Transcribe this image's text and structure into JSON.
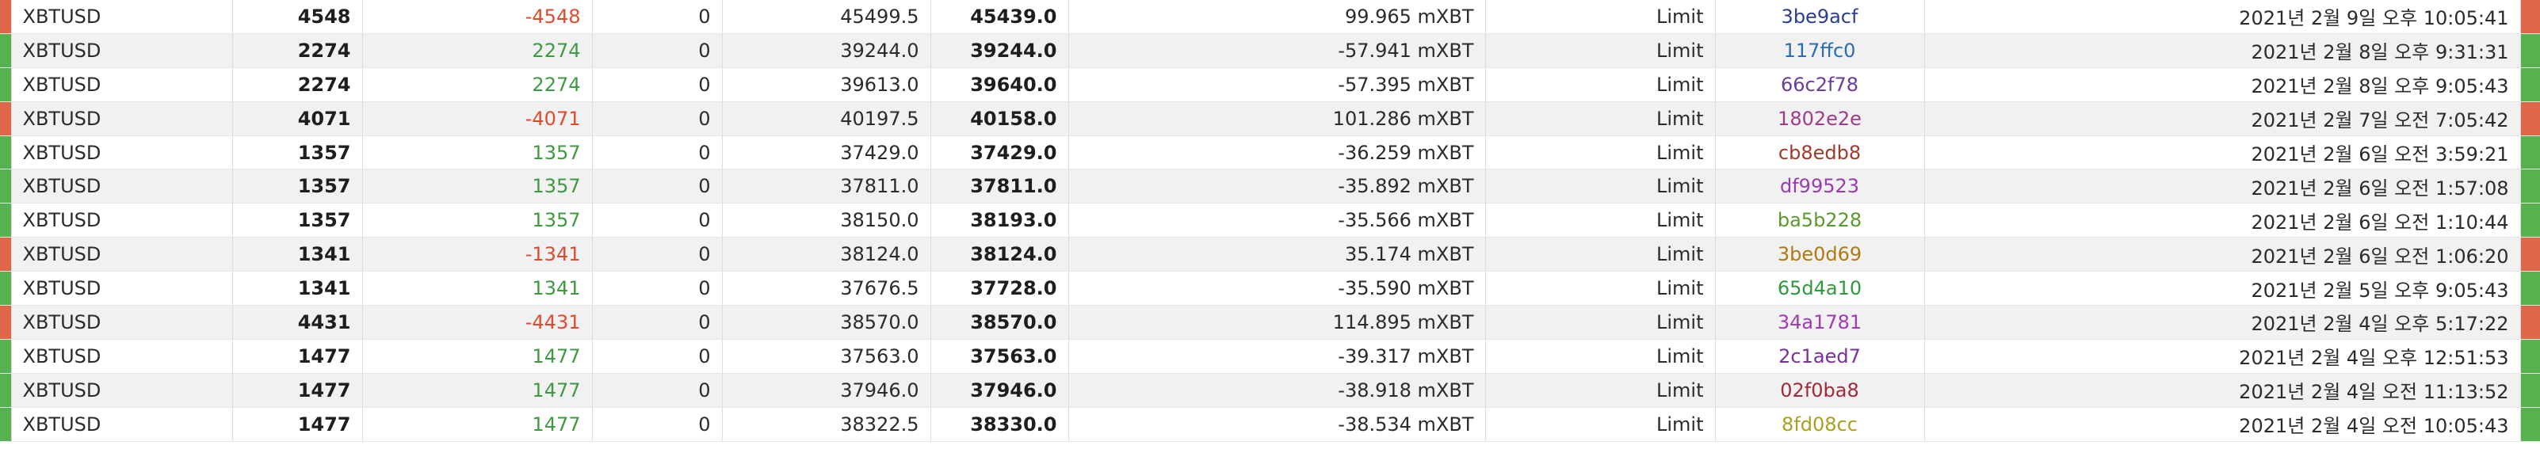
{
  "rows": [
    {
      "side": "sell",
      "symbol": "XBTUSD",
      "size": "4548",
      "filled": "-4548",
      "remaining": "0",
      "price": "45499.5",
      "avg_price": "45439.0",
      "fee": "99.965 mXBT",
      "type": "Limit",
      "order_id": "3be9acf",
      "id_color": "#2c3c98",
      "time": "2021년 2월 9일 오후 10:05:41"
    },
    {
      "side": "buy",
      "symbol": "XBTUSD",
      "size": "2274",
      "filled": "2274",
      "remaining": "0",
      "price": "39244.0",
      "avg_price": "39244.0",
      "fee": "-57.941 mXBT",
      "type": "Limit",
      "order_id": "117ffc0",
      "id_color": "#2b6cb0",
      "time": "2021년 2월 8일 오후 9:31:31"
    },
    {
      "side": "buy",
      "symbol": "XBTUSD",
      "size": "2274",
      "filled": "2274",
      "remaining": "0",
      "price": "39613.0",
      "avg_price": "39640.0",
      "fee": "-57.395 mXBT",
      "type": "Limit",
      "order_id": "66c2f78",
      "id_color": "#6a3d9a",
      "time": "2021년 2월 8일 오후 9:05:43"
    },
    {
      "side": "sell",
      "symbol": "XBTUSD",
      "size": "4071",
      "filled": "-4071",
      "remaining": "0",
      "price": "40197.5",
      "avg_price": "40158.0",
      "fee": "101.286 mXBT",
      "type": "Limit",
      "order_id": "1802e2e",
      "id_color": "#a23a8a",
      "time": "2021년 2월 7일 오전 7:05:42"
    },
    {
      "side": "buy",
      "symbol": "XBTUSD",
      "size": "1357",
      "filled": "1357",
      "remaining": "0",
      "price": "37429.0",
      "avg_price": "37429.0",
      "fee": "-36.259 mXBT",
      "type": "Limit",
      "order_id": "cb8edb8",
      "id_color": "#a03a2a",
      "time": "2021년 2월 6일 오전 3:59:21"
    },
    {
      "side": "buy",
      "symbol": "XBTUSD",
      "size": "1357",
      "filled": "1357",
      "remaining": "0",
      "price": "37811.0",
      "avg_price": "37811.0",
      "fee": "-35.892 mXBT",
      "type": "Limit",
      "order_id": "df99523",
      "id_color": "#9a3ab0",
      "time": "2021년 2월 6일 오전 1:57:08"
    },
    {
      "side": "buy",
      "symbol": "XBTUSD",
      "size": "1357",
      "filled": "1357",
      "remaining": "0",
      "price": "38150.0",
      "avg_price": "38193.0",
      "fee": "-35.566 mXBT",
      "type": "Limit",
      "order_id": "ba5b228",
      "id_color": "#5a9a2a",
      "time": "2021년 2월 6일 오전 1:10:44"
    },
    {
      "side": "sell",
      "symbol": "XBTUSD",
      "size": "1341",
      "filled": "-1341",
      "remaining": "0",
      "price": "38124.0",
      "avg_price": "38124.0",
      "fee": "35.174 mXBT",
      "type": "Limit",
      "order_id": "3be0d69",
      "id_color": "#b07a10",
      "time": "2021년 2월 6일 오전 1:06:20"
    },
    {
      "side": "buy",
      "symbol": "XBTUSD",
      "size": "1341",
      "filled": "1341",
      "remaining": "0",
      "price": "37676.5",
      "avg_price": "37728.0",
      "fee": "-35.590 mXBT",
      "type": "Limit",
      "order_id": "65d4a10",
      "id_color": "#2e9a3e",
      "time": "2021년 2월 5일 오후 9:05:43"
    },
    {
      "side": "sell",
      "symbol": "XBTUSD",
      "size": "4431",
      "filled": "-4431",
      "remaining": "0",
      "price": "38570.0",
      "avg_price": "38570.0",
      "fee": "114.895 mXBT",
      "type": "Limit",
      "order_id": "34a1781",
      "id_color": "#a03ab4",
      "time": "2021년 2월 4일 오후 5:17:22"
    },
    {
      "side": "buy",
      "symbol": "XBTUSD",
      "size": "1477",
      "filled": "1477",
      "remaining": "0",
      "price": "37563.0",
      "avg_price": "37563.0",
      "fee": "-39.317 mXBT",
      "type": "Limit",
      "order_id": "2c1aed7",
      "id_color": "#7a2ea0",
      "time": "2021년 2월 4일 오후 12:51:53"
    },
    {
      "side": "buy",
      "symbol": "XBTUSD",
      "size": "1477",
      "filled": "1477",
      "remaining": "0",
      "price": "37946.0",
      "avg_price": "37946.0",
      "fee": "-38.918 mXBT",
      "type": "Limit",
      "order_id": "02f0ba8",
      "id_color": "#a02a3a",
      "time": "2021년 2월 4일 오전 11:13:52"
    },
    {
      "side": "buy",
      "symbol": "XBTUSD",
      "size": "1477",
      "filled": "1477",
      "remaining": "0",
      "price": "38322.5",
      "avg_price": "38330.0",
      "fee": "-38.534 mXBT",
      "type": "Limit",
      "order_id": "8fd08cc",
      "id_color": "#a8a020",
      "time": "2021년 2월 4일 오전 10:05:43"
    }
  ]
}
